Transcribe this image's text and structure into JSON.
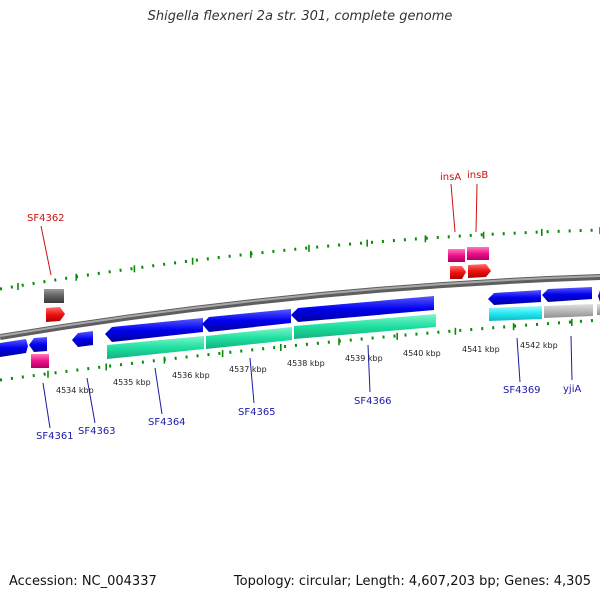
{
  "title": "Shigella flexneri 2a str. 301, complete genome",
  "footer": {
    "accession": "Accession: NC_004337",
    "summary": "Topology: circular; Length: 4,607,203 bp; Genes: 4,305"
  },
  "colors": {
    "backbone": "#808080",
    "cds": "#0000ee",
    "rna_teal": "#1fe0a0",
    "rna_cyan": "#22e8f0",
    "pseudo_gray": "#b8b8b8",
    "mobile_pink": "#ee1188",
    "mobile_red": "#ee1111",
    "dark_gray": "#606060",
    "tick_green": "#0a8a0a",
    "label_blue": "#1a1aa8",
    "label_red": "#cc1111"
  },
  "kbp_ticks": [
    "4534 kbp",
    "4535 kbp",
    "4536 kbp",
    "4537 kbp",
    "4538 kbp",
    "4539 kbp",
    "4540 kbp",
    "4541 kbp",
    "4542 kbp"
  ],
  "gene_labels": [
    {
      "text": "SF4362",
      "color": "red"
    },
    {
      "text": "insA",
      "color": "red"
    },
    {
      "text": "insB",
      "color": "red"
    },
    {
      "text": "SF4361",
      "color": "blue"
    },
    {
      "text": "SF4363",
      "color": "blue"
    },
    {
      "text": "SF4364",
      "color": "blue"
    },
    {
      "text": "SF4365",
      "color": "blue"
    },
    {
      "text": "SF4366",
      "color": "blue"
    },
    {
      "text": "SF4369",
      "color": "blue"
    },
    {
      "text": "yjiA",
      "color": "blue"
    }
  ]
}
